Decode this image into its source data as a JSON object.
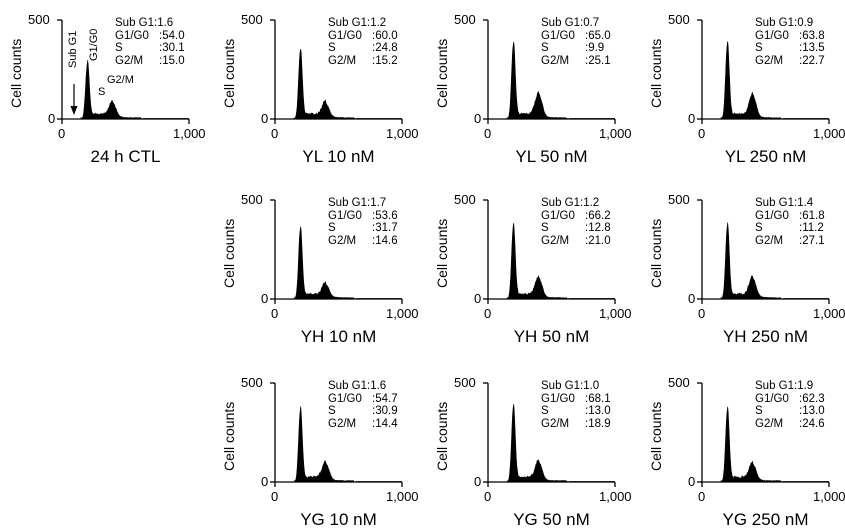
{
  "y_axis_label": "Cell counts",
  "x_tick_labels": [
    "0",
    "1,000"
  ],
  "y_tick_labels": [
    "0",
    "500"
  ],
  "stat_labels": [
    "Sub G1",
    "G1/G0",
    "S",
    "G2/M"
  ],
  "phase_annotations": [
    "Sub G1",
    "G1/G0",
    "S",
    "G2/M"
  ],
  "chart_data": [
    {
      "type": "area",
      "title": "24 h CTL",
      "xlim": [
        0,
        1000
      ],
      "ylim": [
        0,
        500
      ],
      "stats": {
        "Sub G1": "1.6",
        "G1/G0": "54.0",
        "S": "30.1",
        "G2/M": "15.0"
      },
      "g1_peak": {
        "x": 200,
        "y": 270
      },
      "g2_peak": {
        "x": 400,
        "y": 65
      }
    },
    {
      "type": "area",
      "title": "YL 10 nM",
      "xlim": [
        0,
        1000
      ],
      "ylim": [
        0,
        500
      ],
      "stats": {
        "Sub G1": "1.2",
        "G1/G0": "60.0",
        "S": "24.8",
        "G2/M": "15.2"
      },
      "g1_peak": {
        "x": 200,
        "y": 335
      },
      "g2_peak": {
        "x": 400,
        "y": 65
      }
    },
    {
      "type": "area",
      "title": "YL 50 nM",
      "xlim": [
        0,
        1000
      ],
      "ylim": [
        0,
        500
      ],
      "stats": {
        "Sub G1": "0.7",
        "G1/G0": "65.0",
        "S": "9.9",
        "G2/M": "25.1"
      },
      "g1_peak": {
        "x": 200,
        "y": 370
      },
      "g2_peak": {
        "x": 400,
        "y": 110
      }
    },
    {
      "type": "area",
      "title": "YL 250 nM",
      "xlim": [
        0,
        1000
      ],
      "ylim": [
        0,
        500
      ],
      "stats": {
        "Sub G1": "0.9",
        "G1/G0": "63.8",
        "S": "13.5",
        "G2/M": "22.7"
      },
      "g1_peak": {
        "x": 200,
        "y": 370
      },
      "g2_peak": {
        "x": 400,
        "y": 105
      }
    },
    {
      "type": "area",
      "title": "YH 10 nM",
      "xlim": [
        0,
        1000
      ],
      "ylim": [
        0,
        500
      ],
      "stats": {
        "Sub G1": "1.7",
        "G1/G0": "53.6",
        "S": "31.7",
        "G2/M": "14.6"
      },
      "g1_peak": {
        "x": 200,
        "y": 345
      },
      "g2_peak": {
        "x": 400,
        "y": 60
      }
    },
    {
      "type": "area",
      "title": "YH 50 nM",
      "xlim": [
        0,
        1000
      ],
      "ylim": [
        0,
        500
      ],
      "stats": {
        "Sub G1": "1.2",
        "G1/G0": "66.2",
        "S": "12.8",
        "G2/M": "21.0"
      },
      "g1_peak": {
        "x": 200,
        "y": 360
      },
      "g2_peak": {
        "x": 400,
        "y": 90
      }
    },
    {
      "type": "area",
      "title": "YH 250 nM",
      "xlim": [
        0,
        1000
      ],
      "ylim": [
        0,
        500
      ],
      "stats": {
        "Sub G1": "1.4",
        "G1/G0": "61.8",
        "S": "11.2",
        "G2/M": "27.1"
      },
      "g1_peak": {
        "x": 200,
        "y": 360
      },
      "g2_peak": {
        "x": 400,
        "y": 90
      }
    },
    {
      "type": "area",
      "title": "YG 10 nM",
      "xlim": [
        0,
        1000
      ],
      "ylim": [
        0,
        500
      ],
      "stats": {
        "Sub G1": "1.6",
        "G1/G0": "54.7",
        "S": "30.9",
        "G2/M": "14.4"
      },
      "g1_peak": {
        "x": 200,
        "y": 355
      },
      "g2_peak": {
        "x": 400,
        "y": 80
      }
    },
    {
      "type": "area",
      "title": "YG 50 nM",
      "xlim": [
        0,
        1000
      ],
      "ylim": [
        0,
        500
      ],
      "stats": {
        "Sub G1": "1.0",
        "G1/G0": "68.1",
        "S": "13.0",
        "G2/M": "18.9"
      },
      "g1_peak": {
        "x": 200,
        "y": 370
      },
      "g2_peak": {
        "x": 400,
        "y": 85
      }
    },
    {
      "type": "area",
      "title": "YG 250 nM",
      "xlim": [
        0,
        1000
      ],
      "ylim": [
        0,
        500
      ],
      "stats": {
        "Sub G1": "1.9",
        "G1/G0": "62.3",
        "S": "13.0",
        "G2/M": "24.6"
      },
      "g1_peak": {
        "x": 200,
        "y": 355
      },
      "g2_peak": {
        "x": 400,
        "y": 75
      }
    }
  ]
}
